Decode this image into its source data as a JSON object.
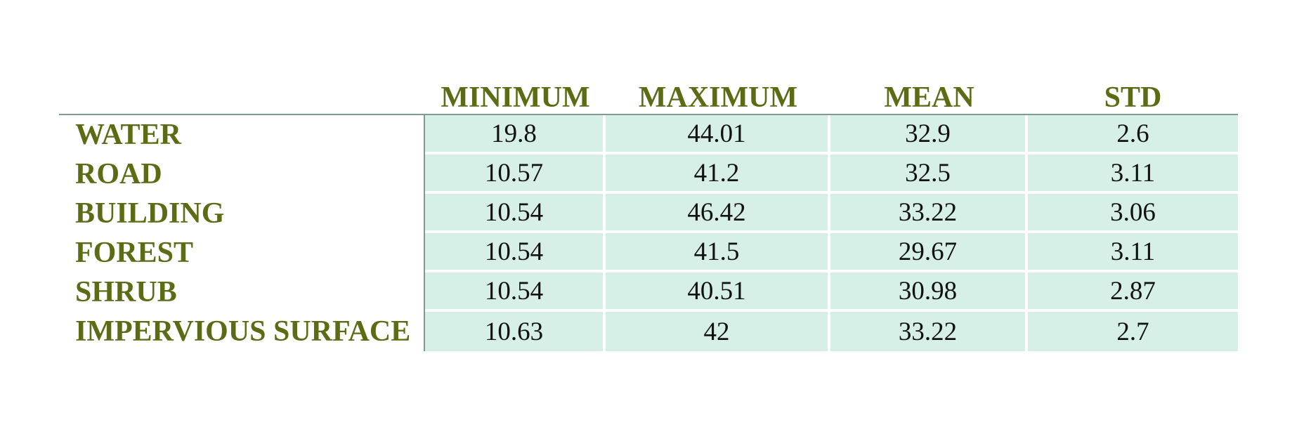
{
  "table": {
    "columns": [
      "MINIMUM",
      "MAXIMUM",
      "MEAN",
      "STD"
    ],
    "rows": [
      {
        "label": "WATER",
        "values": [
          "19.8",
          "44.01",
          "32.9",
          "2.6"
        ]
      },
      {
        "label": "ROAD",
        "values": [
          "10.57",
          "41.2",
          "32.5",
          "3.11"
        ]
      },
      {
        "label": "BUILDING",
        "values": [
          "10.54",
          "46.42",
          "33.22",
          "3.06"
        ]
      },
      {
        "label": "FOREST",
        "values": [
          "10.54",
          "41.5",
          "29.67",
          "3.11"
        ]
      },
      {
        "label": "SHRUB",
        "values": [
          "10.54",
          "40.51",
          "30.98",
          "2.87"
        ]
      },
      {
        "label": "IMPERVIOUS SURFACE",
        "values": [
          "10.63",
          "42",
          "33.22",
          "2.7"
        ]
      }
    ]
  },
  "colors": {
    "header_text": "#5b6c14",
    "cell_background": "#d6efe7",
    "rule_line": "#7d9a93"
  }
}
